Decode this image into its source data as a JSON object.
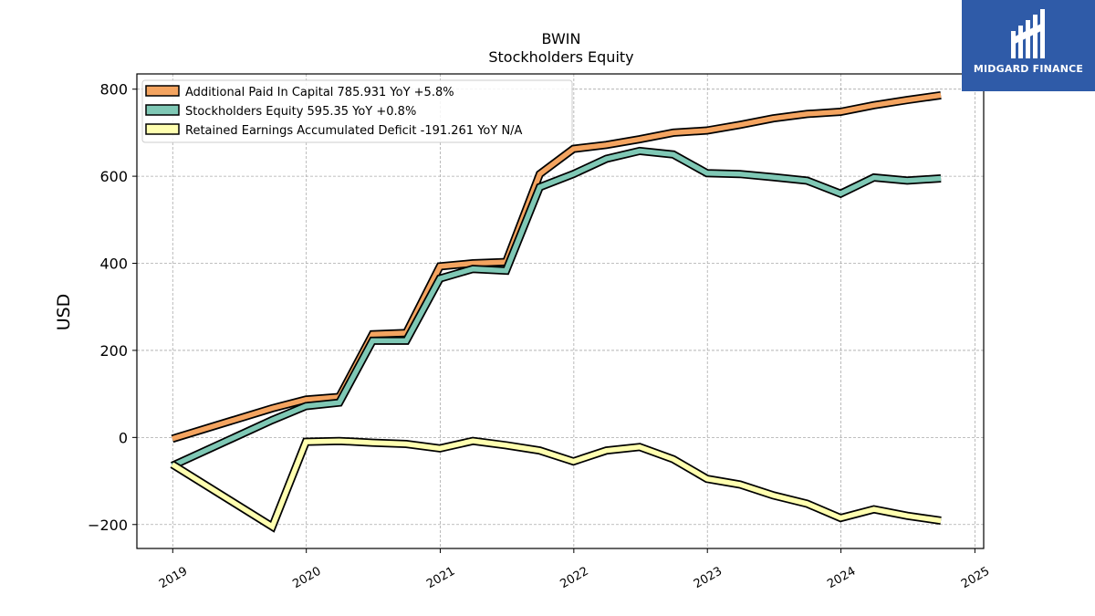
{
  "colors": {
    "accent": "#2f5ba8",
    "apic": "#f4a460",
    "equity": "#7fc8b5",
    "retained": "#ffffb0"
  },
  "logo": {
    "brand": "MIDGARD FINANCE",
    "icon": "midgard-logo-icon"
  },
  "chart_data": {
    "type": "line",
    "title": "BWIN",
    "subtitle": "Stockholders  Equity",
    "xlabel": "",
    "ylabel": "USD",
    "xlim": [
      "2018-09-25",
      "2025-01-25"
    ],
    "ylim": [
      -255,
      835
    ],
    "xticks": [
      "2019",
      "2020",
      "2021",
      "2022",
      "2023",
      "2024",
      "2025"
    ],
    "yticks": [
      "800",
      "600",
      "400",
      "200",
      "0",
      "−200"
    ],
    "grid": true,
    "legend_position": "top-left",
    "x": [
      "2018-12-31",
      "2019-09-30",
      "2019-12-31",
      "2020-03-31",
      "2020-06-30",
      "2020-09-30",
      "2020-12-31",
      "2021-03-31",
      "2021-06-30",
      "2021-09-30",
      "2021-12-31",
      "2022-03-31",
      "2022-06-30",
      "2022-09-30",
      "2022-12-31",
      "2023-03-31",
      "2023-06-30",
      "2023-09-30",
      "2023-12-31",
      "2024-03-31",
      "2024-06-30",
      "2024-09-30"
    ],
    "series": [
      {
        "name": "Additional Paid In Capital",
        "legend_label": "Additional Paid In Capital  785.931 YoY +5.8%",
        "color": "#f4a460",
        "values": [
          -3,
          67,
          87,
          93,
          237,
          240,
          393,
          400,
          403,
          605,
          663,
          672,
          685,
          700,
          705,
          718,
          733,
          743,
          748,
          763,
          775,
          786
        ]
      },
      {
        "name": "Stockholders Equity",
        "legend_label": "Stockholders Equity  595.35 YoY +0.8%",
        "color": "#7fc8b5",
        "values": [
          -65,
          40,
          72,
          80,
          222,
          222,
          365,
          387,
          383,
          575,
          605,
          640,
          658,
          650,
          607,
          605,
          598,
          590,
          560,
          597,
          590,
          595
        ]
      },
      {
        "name": "Retained Earnings Accumulated Deficit",
        "legend_label": "Retained Earnings Accumulated Deficit  -191.261 YoY N/A",
        "color": "#ffffb0",
        "values": [
          -62,
          -205,
          -10,
          -8,
          -12,
          -15,
          -25,
          -8,
          -18,
          -30,
          -55,
          -30,
          -22,
          -50,
          -95,
          -108,
          -133,
          -152,
          -185,
          -165,
          -180,
          -191
        ]
      }
    ]
  }
}
